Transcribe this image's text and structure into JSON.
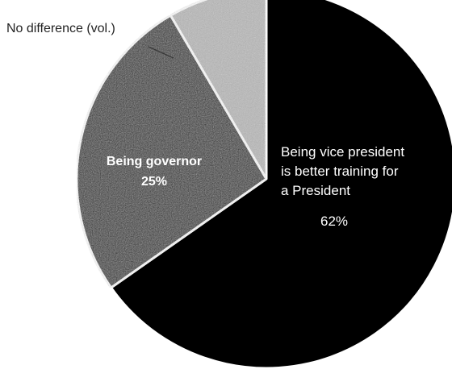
{
  "chart_data": {
    "type": "pie",
    "title": "",
    "slices": [
      {
        "label_lines": [
          "Being vice president",
          "is better training for",
          "a President"
        ],
        "value": 62,
        "value_label": "62%",
        "color": "#000000",
        "label_color": "#ffffff"
      },
      {
        "label_lines": [
          "Being governor"
        ],
        "value": 25,
        "value_label": "25%",
        "color": "#1c1c1c",
        "label_color": "#ffffff"
      },
      {
        "label_lines": [
          "No difference (vol.)"
        ],
        "value": 8,
        "value_label": "",
        "color": "#b9b9b9",
        "label_color": "#222222"
      }
    ],
    "start_angle_deg": 0,
    "direction": "clockwise",
    "separator_color": "#ffffff"
  }
}
